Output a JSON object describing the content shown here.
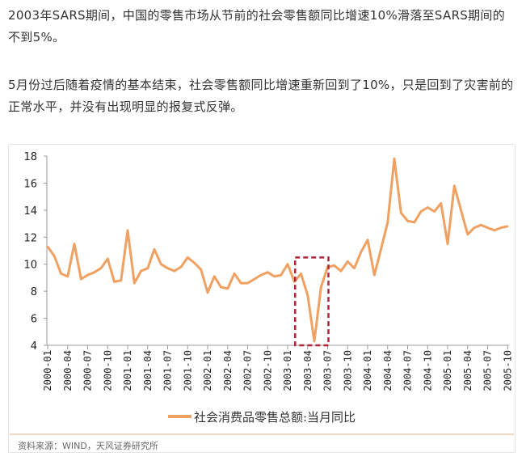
{
  "article": {
    "paragraph1": "2003年SARS期间，中国的零售市场从节前的社会零售额同比增速10%滑落至SARS期间的不到5%。",
    "paragraph2": "5月份过后随着疫情的基本结束，社会零售额同比增速重新回到了10%，只是回到了灾害前的正常水平，并没有出现明显的报复式反弹。"
  },
  "source": "资料来源：WIND，天风证券研究所",
  "chart_data": {
    "type": "line",
    "title": "",
    "xlabel": "",
    "ylabel": "",
    "ylim": [
      4,
      18
    ],
    "yticks": [
      4,
      6,
      8,
      10,
      12,
      14,
      16,
      18
    ],
    "grid": false,
    "legend_position": "bottom",
    "line_color": "#f0a060",
    "highlight_color": "#b0243c",
    "x_start": "2000-01",
    "x_end": "2005-10",
    "xtick_labels": [
      "2000-01",
      "2000-04",
      "2000-07",
      "2000-10",
      "2001-01",
      "2001-04",
      "2001-07",
      "2001-10",
      "2002-01",
      "2002-04",
      "2002-07",
      "2002-10",
      "2003-01",
      "2003-04",
      "2003-07",
      "2003-10",
      "2004-01",
      "2004-04",
      "2004-07",
      "2004-10",
      "2005-01",
      "2005-04",
      "2005-07",
      "2005-10"
    ],
    "series": [
      {
        "name": "社会消费品零售总额:当月同比",
        "values": [
          11.3,
          10.6,
          9.3,
          9.1,
          11.5,
          8.9,
          9.2,
          9.4,
          9.7,
          10.4,
          8.7,
          8.8,
          12.5,
          8.6,
          9.5,
          9.7,
          11.1,
          10.0,
          9.7,
          9.5,
          9.8,
          10.5,
          10.1,
          9.6,
          7.9,
          9.1,
          8.3,
          8.2,
          9.3,
          8.6,
          8.6,
          8.9,
          9.2,
          9.4,
          9.1,
          9.2,
          10.0,
          8.7,
          9.3,
          7.7,
          4.3,
          8.3,
          9.8,
          9.9,
          9.5,
          10.2,
          9.7,
          10.9,
          11.8,
          9.2,
          11.1,
          13.1,
          17.8,
          13.8,
          13.2,
          13.1,
          13.9,
          14.2,
          13.9,
          14.5,
          11.5,
          15.8,
          14.0,
          12.2,
          12.7,
          12.9,
          12.7,
          12.5,
          12.7,
          12.8
        ]
      }
    ],
    "highlight_box": {
      "x_from": "2003-02",
      "x_to": "2003-07",
      "y_from": 4,
      "y_to": 10.5
    }
  }
}
